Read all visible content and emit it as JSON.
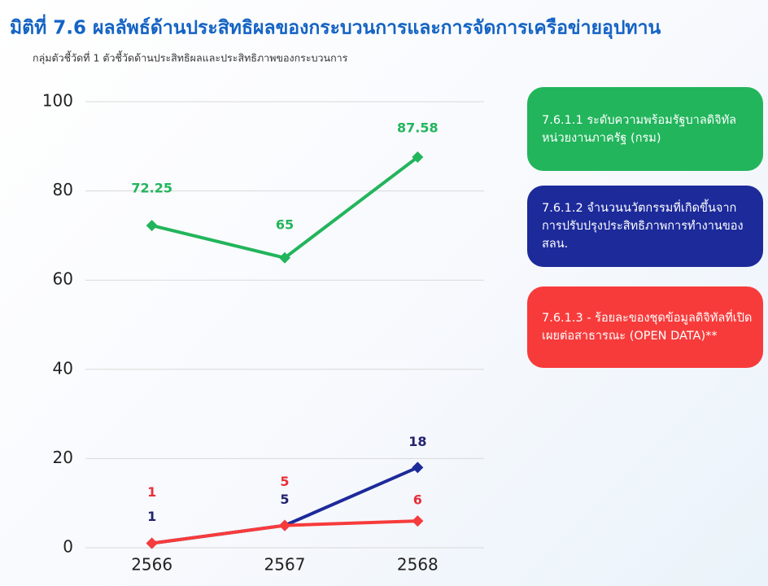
{
  "chart_data": {
    "type": "line",
    "title": "มิติที่ 7.6 ผลลัพธ์ด้านประสิทธิผลของกระบวนการและการจัดการเครือข่ายอุปทาน",
    "subtitle": "กลุ่มตัวชี้วัดที่ 1 ตัวชี้วัดด้านประสิทธิผลและประสิทธิภาพของกระบวนการ",
    "categories": [
      "2566",
      "2567",
      "2568"
    ],
    "series": [
      {
        "name": "7.6.1.1 ระดับความพร้อมรัฐบาลดิจิทัลหน่วยงานภาครัฐ (กรม)",
        "color": "#22b55c",
        "values": [
          72.25,
          65,
          87.58
        ]
      },
      {
        "name": "7.6.1.2 จำนวนนวัตกรรมที่เกิดขึ้นจากการปรับปรุงประสิทธิภาพการทำงานของ สลน.",
        "color": "#1c2a9a",
        "values": [
          1,
          5,
          18
        ]
      },
      {
        "name": "7.6.1.3 - ร้อยละของชุดข้อมูลดิจิทัลที่เปิดเผยต่อสาธารณะ (OPEN DATA)**",
        "color": "#f73b3b",
        "values": [
          1,
          5,
          6
        ]
      }
    ],
    "ylim": [
      0,
      100
    ],
    "yticks": [
      0,
      20,
      40,
      60,
      80,
      100
    ],
    "grid": true
  }
}
